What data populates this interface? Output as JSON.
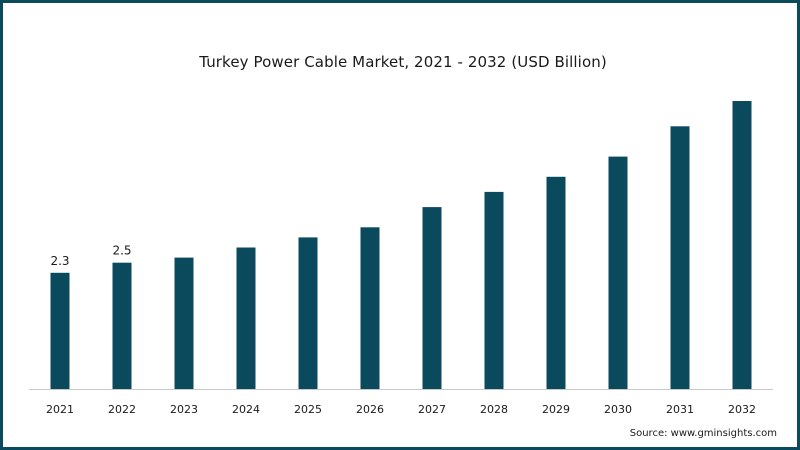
{
  "chart_data": {
    "type": "bar",
    "title": "Turkey Power Cable Market, 2021 - 2032 (USD Billion)",
    "categories": [
      "2021",
      "2022",
      "2023",
      "2024",
      "2025",
      "2026",
      "2027",
      "2028",
      "2029",
      "2030",
      "2031",
      "2032"
    ],
    "values": [
      2.3,
      2.5,
      2.6,
      2.8,
      3.0,
      3.2,
      3.6,
      3.9,
      4.2,
      4.6,
      5.2,
      5.7
    ],
    "data_labels": [
      "2.3",
      "2.5",
      "",
      "",
      "",
      "",
      "",
      "",
      "",
      "",
      "",
      ""
    ],
    "xlabel": "",
    "ylabel": "",
    "ylim": [
      0,
      5.7
    ],
    "grid": false,
    "legend": "none",
    "bar_color": "#0b4a5c"
  },
  "source_text": "Source: www.gminsights.com",
  "colors": {
    "frame": "#0b4a5c",
    "bar": "#0b4a5c",
    "axis": "#c8c8c8",
    "text": "#1a1a1a"
  }
}
